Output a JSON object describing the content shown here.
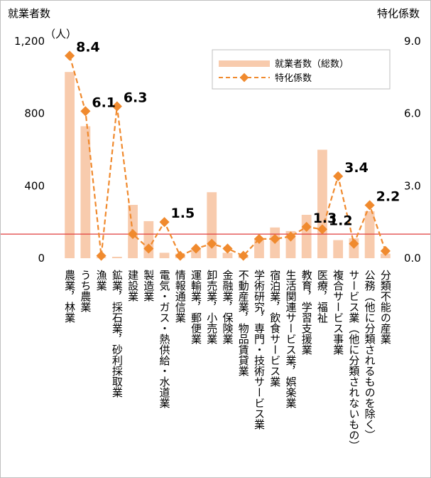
{
  "chart_data": {
    "type": "bar+line",
    "left_axis_title": "就業者数",
    "left_axis_unit": "（人）",
    "right_axis_title": "特化係数",
    "left_ticks": [
      "0",
      "400",
      "800",
      "1,200"
    ],
    "right_ticks": [
      "0.0",
      "3.0",
      "6.0",
      "9.0"
    ],
    "ylim_left": [
      0,
      1200
    ],
    "ylim_right": [
      0,
      9
    ],
    "reference_line_value_right": 1.0,
    "reference_line_color": "#e03c3c",
    "bar_color": "#f8cbad",
    "line_color": "#f08a2e",
    "legend": {
      "position": "top-right",
      "bar_label": "就業者数（総数）",
      "line_label": "特化係数"
    },
    "categories": [
      "農業，林業",
      "うち農業",
      "漁業",
      "鉱業，採石業，砂利採取業",
      "建設業",
      "製造業",
      "電気・ガス・熱供給・水道業",
      "情報通信業",
      "運輸業，郵便業",
      "卸売業，小売業",
      "金融業，保険業",
      "不動産業，物品賃貸業",
      "学術研究，専門・技術サービス業",
      "宿泊業，飲食サービス業",
      "生活関連サービス業，娯楽業",
      "教育，学習支援業",
      "医療，福祉",
      "複合サービス事業",
      "サービス業（他に分類されないもの）",
      "公務（他に分類されるものを除く）",
      "分類不能の産業"
    ],
    "series": [
      {
        "name": "就業者数（総数）",
        "axis": "left",
        "values": [
          1030,
          730,
          5,
          8,
          295,
          205,
          30,
          25,
          55,
          365,
          30,
          10,
          110,
          170,
          150,
          240,
          600,
          100,
          110,
          260,
          25
        ]
      },
      {
        "name": "特化係数",
        "axis": "right",
        "values": [
          8.4,
          6.1,
          0.1,
          6.3,
          1.0,
          0.4,
          1.5,
          0.1,
          0.4,
          0.6,
          0.4,
          0.1,
          0.8,
          0.8,
          0.9,
          1.3,
          1.2,
          3.4,
          0.6,
          2.2,
          0.3
        ]
      }
    ],
    "data_labels": [
      {
        "index": 0,
        "text": "8.4"
      },
      {
        "index": 1,
        "text": "6.1"
      },
      {
        "index": 3,
        "text": "6.3"
      },
      {
        "index": 6,
        "text": "1.5"
      },
      {
        "index": 15,
        "text": "1.3"
      },
      {
        "index": 16,
        "text": "1.2"
      },
      {
        "index": 17,
        "text": "3.4"
      },
      {
        "index": 19,
        "text": "2.2"
      }
    ]
  }
}
